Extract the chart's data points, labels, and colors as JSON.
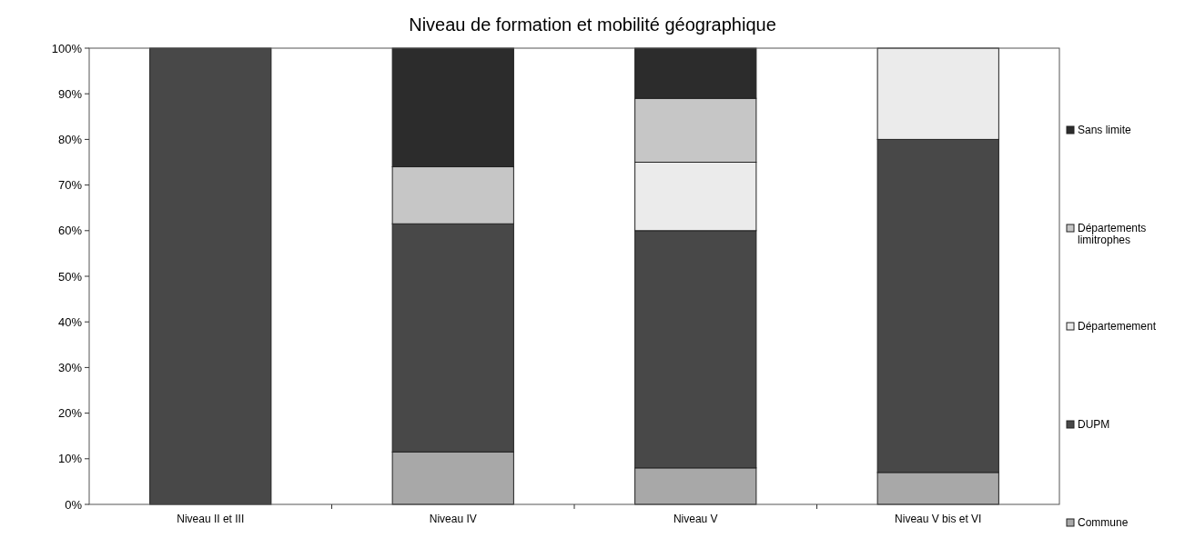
{
  "chart_data": {
    "type": "bar",
    "title": "Niveau de formation et mobilité géographique",
    "categories": [
      "Niveau II et III",
      "Niveau IV",
      "Niveau V",
      "Niveau V bis et VI"
    ],
    "stacked": true,
    "ylim": [
      0,
      100
    ],
    "yticks": [
      {
        "value": 0,
        "label": "0%"
      },
      {
        "value": 10,
        "label": "10%"
      },
      {
        "value": 20,
        "label": "20%"
      },
      {
        "value": 30,
        "label": "30%"
      },
      {
        "value": 40,
        "label": "40%"
      },
      {
        "value": 50,
        "label": "50%"
      },
      {
        "value": 60,
        "label": "60%"
      },
      {
        "value": 70,
        "label": "70%"
      },
      {
        "value": 80,
        "label": "80%"
      },
      {
        "value": 90,
        "label": "90%"
      },
      {
        "value": 100,
        "label": "100%"
      }
    ],
    "legend": "right",
    "grid": false,
    "series": [
      {
        "name": "Commune",
        "color": "#a8a8a8",
        "values": [
          0,
          11.5,
          8,
          7
        ]
      },
      {
        "name": "DUPM",
        "color": "#484848",
        "values": [
          100,
          50,
          52,
          73
        ]
      },
      {
        "name": "Départemement",
        "color": "#ebebeb",
        "values": [
          0,
          0,
          15,
          20
        ]
      },
      {
        "name": "Départements limitrophes",
        "color": "#c6c6c6",
        "values": [
          0,
          12.5,
          14,
          0
        ]
      },
      {
        "name": "Sans limite",
        "color": "#2c2c2c",
        "values": [
          0,
          26,
          11,
          0
        ]
      }
    ]
  }
}
